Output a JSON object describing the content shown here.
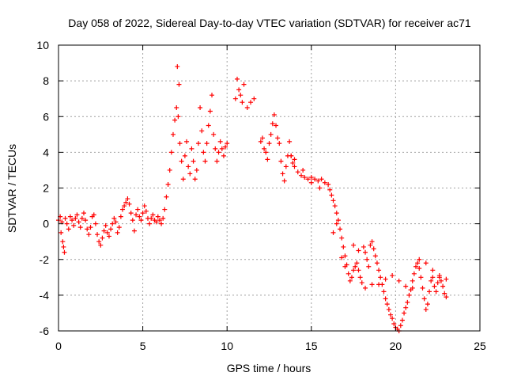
{
  "chart_data": {
    "type": "scatter",
    "title": "Day 058 of 2022, Sidereal Day-to-day VTEC variation (SDTVAR) for receiver ac71",
    "xlabel": "GPS time / hours",
    "ylabel": "SDTVAR / TECUs",
    "xlim": [
      0,
      25
    ],
    "ylim": [
      -6,
      10
    ],
    "xticks": [
      0,
      5,
      10,
      15,
      20,
      25
    ],
    "yticks": [
      -6,
      -4,
      -2,
      0,
      2,
      4,
      6,
      8,
      10
    ],
    "grid": true,
    "marker": "+",
    "color": "#ff0000",
    "series": [
      {
        "name": "SDTVAR",
        "points": [
          [
            0.0,
            0.2
          ],
          [
            0.1,
            0.4
          ],
          [
            0.15,
            -0.5
          ],
          [
            0.2,
            0.1
          ],
          [
            0.25,
            -1.0
          ],
          [
            0.3,
            -1.3
          ],
          [
            0.35,
            -1.6
          ],
          [
            0.4,
            0.3
          ],
          [
            0.5,
            0.0
          ],
          [
            0.6,
            -0.3
          ],
          [
            0.7,
            0.4
          ],
          [
            0.8,
            0.2
          ],
          [
            0.9,
            -0.1
          ],
          [
            1.0,
            0.3
          ],
          [
            1.1,
            0.5
          ],
          [
            1.2,
            0.1
          ],
          [
            1.3,
            -0.2
          ],
          [
            1.4,
            0.3
          ],
          [
            1.5,
            0.6
          ],
          [
            1.6,
            0.2
          ],
          [
            1.7,
            -0.3
          ],
          [
            1.8,
            -0.6
          ],
          [
            1.9,
            -0.2
          ],
          [
            2.0,
            0.4
          ],
          [
            2.1,
            0.5
          ],
          [
            2.2,
            0.0
          ],
          [
            2.3,
            -0.6
          ],
          [
            2.4,
            -1.0
          ],
          [
            2.5,
            -1.2
          ],
          [
            2.6,
            -0.8
          ],
          [
            2.7,
            -0.4
          ],
          [
            2.8,
            -0.1
          ],
          [
            2.9,
            -0.5
          ],
          [
            3.0,
            -0.7
          ],
          [
            3.1,
            -0.3
          ],
          [
            3.2,
            0.0
          ],
          [
            3.3,
            0.3
          ],
          [
            3.4,
            0.1
          ],
          [
            3.5,
            -0.5
          ],
          [
            3.6,
            -0.2
          ],
          [
            3.7,
            0.4
          ],
          [
            3.8,
            0.8
          ],
          [
            3.9,
            1.0
          ],
          [
            4.0,
            1.2
          ],
          [
            4.1,
            1.4
          ],
          [
            4.2,
            1.1
          ],
          [
            4.3,
            0.6
          ],
          [
            4.4,
            0.2
          ],
          [
            4.5,
            -0.4
          ],
          [
            4.6,
            0.5
          ],
          [
            4.7,
            0.8
          ],
          [
            4.8,
            0.4
          ],
          [
            4.9,
            0.2
          ],
          [
            5.0,
            0.6
          ],
          [
            5.1,
            1.0
          ],
          [
            5.2,
            0.7
          ],
          [
            5.3,
            0.3
          ],
          [
            5.4,
            0.0
          ],
          [
            5.5,
            0.3
          ],
          [
            5.6,
            0.5
          ],
          [
            5.7,
            0.2
          ],
          [
            5.8,
            0.1
          ],
          [
            5.9,
            0.4
          ],
          [
            6.0,
            0.2
          ],
          [
            6.1,
            0.0
          ],
          [
            6.2,
            0.3
          ],
          [
            6.3,
            0.8
          ],
          [
            6.4,
            1.5
          ],
          [
            6.5,
            2.2
          ],
          [
            6.6,
            3.0
          ],
          [
            6.7,
            4.0
          ],
          [
            6.8,
            5.0
          ],
          [
            6.9,
            5.8
          ],
          [
            7.0,
            6.5
          ],
          [
            7.05,
            8.8
          ],
          [
            7.1,
            6.0
          ],
          [
            7.15,
            7.8
          ],
          [
            7.2,
            4.5
          ],
          [
            7.3,
            3.5
          ],
          [
            7.4,
            2.5
          ],
          [
            7.5,
            3.8
          ],
          [
            7.6,
            4.6
          ],
          [
            7.7,
            3.2
          ],
          [
            7.8,
            2.8
          ],
          [
            7.9,
            4.2
          ],
          [
            8.0,
            3.5
          ],
          [
            8.1,
            2.5
          ],
          [
            8.2,
            3.0
          ],
          [
            8.3,
            4.5
          ],
          [
            8.4,
            6.5
          ],
          [
            8.5,
            5.2
          ],
          [
            8.6,
            4.0
          ],
          [
            8.7,
            3.5
          ],
          [
            8.8,
            4.5
          ],
          [
            8.9,
            5.5
          ],
          [
            9.0,
            6.3
          ],
          [
            9.1,
            7.2
          ],
          [
            9.2,
            5.0
          ],
          [
            9.3,
            4.2
          ],
          [
            9.4,
            3.5
          ],
          [
            9.5,
            4.0
          ],
          [
            9.6,
            4.6
          ],
          [
            9.7,
            4.2
          ],
          [
            9.8,
            3.8
          ],
          [
            9.9,
            4.3
          ],
          [
            10.0,
            4.5
          ],
          [
            10.5,
            7.0
          ],
          [
            10.6,
            8.1
          ],
          [
            10.7,
            7.5
          ],
          [
            10.8,
            7.2
          ],
          [
            10.9,
            6.8
          ],
          [
            11.0,
            7.8
          ],
          [
            11.2,
            6.5
          ],
          [
            11.4,
            6.8
          ],
          [
            11.6,
            7.0
          ],
          [
            12.0,
            4.6
          ],
          [
            12.1,
            4.8
          ],
          [
            12.2,
            4.2
          ],
          [
            12.3,
            4.0
          ],
          [
            12.4,
            3.6
          ],
          [
            12.5,
            4.5
          ],
          [
            12.6,
            5.0
          ],
          [
            12.7,
            5.6
          ],
          [
            12.8,
            6.1
          ],
          [
            12.9,
            5.5
          ],
          [
            13.0,
            4.8
          ],
          [
            13.1,
            4.5
          ],
          [
            13.2,
            3.5
          ],
          [
            13.3,
            2.8
          ],
          [
            13.4,
            2.4
          ],
          [
            13.5,
            3.2
          ],
          [
            13.6,
            3.8
          ],
          [
            13.7,
            4.6
          ],
          [
            13.8,
            3.8
          ],
          [
            13.9,
            3.4
          ],
          [
            14.0,
            3.2
          ],
          [
            14.2,
            2.9
          ],
          [
            14.4,
            2.7
          ],
          [
            14.6,
            2.6
          ],
          [
            14.8,
            2.5
          ],
          [
            15.0,
            2.6
          ],
          [
            15.2,
            2.5
          ],
          [
            15.4,
            2.4
          ],
          [
            15.6,
            2.5
          ],
          [
            15.8,
            2.3
          ],
          [
            16.0,
            2.2
          ],
          [
            16.1,
            1.9
          ],
          [
            16.2,
            1.6
          ],
          [
            16.3,
            1.3
          ],
          [
            16.4,
            1.0
          ],
          [
            16.5,
            0.6
          ],
          [
            16.6,
            0.2
          ],
          [
            16.7,
            -0.3
          ],
          [
            16.8,
            -0.8
          ],
          [
            16.9,
            -1.3
          ],
          [
            17.0,
            -1.8
          ],
          [
            17.1,
            -2.3
          ],
          [
            17.2,
            -2.8
          ],
          [
            17.3,
            -3.2
          ],
          [
            17.4,
            -3.0
          ],
          [
            17.5,
            -2.6
          ],
          [
            17.6,
            -2.4
          ],
          [
            17.7,
            -2.2
          ],
          [
            17.8,
            -2.6
          ],
          [
            17.9,
            -3.0
          ],
          [
            18.0,
            -3.3
          ],
          [
            18.1,
            -1.3
          ],
          [
            18.2,
            -1.6
          ],
          [
            18.3,
            -2.0
          ],
          [
            18.4,
            -2.4
          ],
          [
            18.5,
            -1.2
          ],
          [
            18.6,
            -1.0
          ],
          [
            18.7,
            -1.4
          ],
          [
            18.8,
            -1.8
          ],
          [
            18.9,
            -2.2
          ],
          [
            19.0,
            -2.6
          ],
          [
            19.1,
            -3.0
          ],
          [
            19.2,
            -3.4
          ],
          [
            19.3,
            -3.8
          ],
          [
            19.4,
            -4.2
          ],
          [
            19.5,
            -4.5
          ],
          [
            19.6,
            -4.8
          ],
          [
            19.7,
            -5.1
          ],
          [
            19.8,
            -5.3
          ],
          [
            19.9,
            -5.6
          ],
          [
            20.0,
            -5.8
          ],
          [
            20.1,
            -5.9
          ],
          [
            20.2,
            -6.0
          ],
          [
            20.3,
            -5.7
          ],
          [
            20.4,
            -5.4
          ],
          [
            20.5,
            -5.0
          ],
          [
            20.6,
            -4.7
          ],
          [
            20.7,
            -4.4
          ],
          [
            20.8,
            -4.0
          ],
          [
            20.9,
            -3.7
          ],
          [
            21.0,
            -3.2
          ],
          [
            21.1,
            -2.8
          ],
          [
            21.2,
            -2.4
          ],
          [
            21.3,
            -2.2
          ],
          [
            21.4,
            -2.5
          ],
          [
            21.5,
            -3.0
          ],
          [
            21.6,
            -3.6
          ],
          [
            21.7,
            -4.2
          ],
          [
            21.8,
            -4.8
          ],
          [
            21.9,
            -4.5
          ],
          [
            22.0,
            -3.8
          ],
          [
            22.1,
            -3.2
          ],
          [
            22.2,
            -3.0
          ],
          [
            22.3,
            -3.5
          ],
          [
            22.4,
            -3.8
          ],
          [
            22.5,
            -3.3
          ],
          [
            22.6,
            -3.0
          ],
          [
            22.7,
            -3.2
          ],
          [
            22.8,
            -3.5
          ],
          [
            22.9,
            -3.9
          ],
          [
            23.0,
            -4.1
          ],
          [
            23.0,
            -3.1
          ],
          [
            19.0,
            -3.4
          ],
          [
            19.4,
            -3.1
          ],
          [
            19.8,
            -2.9
          ],
          [
            20.2,
            -3.2
          ],
          [
            20.6,
            -3.5
          ],
          [
            21.0,
            -3.6
          ],
          [
            21.4,
            -2.0
          ],
          [
            21.8,
            -2.2
          ],
          [
            22.2,
            -2.6
          ],
          [
            22.6,
            -2.9
          ],
          [
            17.5,
            -1.2
          ],
          [
            17.8,
            -1.5
          ],
          [
            18.2,
            -3.6
          ],
          [
            18.6,
            -3.4
          ],
          [
            16.8,
            -1.9
          ],
          [
            17.0,
            -2.4
          ],
          [
            16.5,
            0.0
          ],
          [
            16.3,
            -0.5
          ],
          [
            15.5,
            2.0
          ],
          [
            15.0,
            2.3
          ],
          [
            14.5,
            3.0
          ],
          [
            14.0,
            3.6
          ],
          [
            13.8,
            3.8
          ]
        ]
      }
    ]
  }
}
